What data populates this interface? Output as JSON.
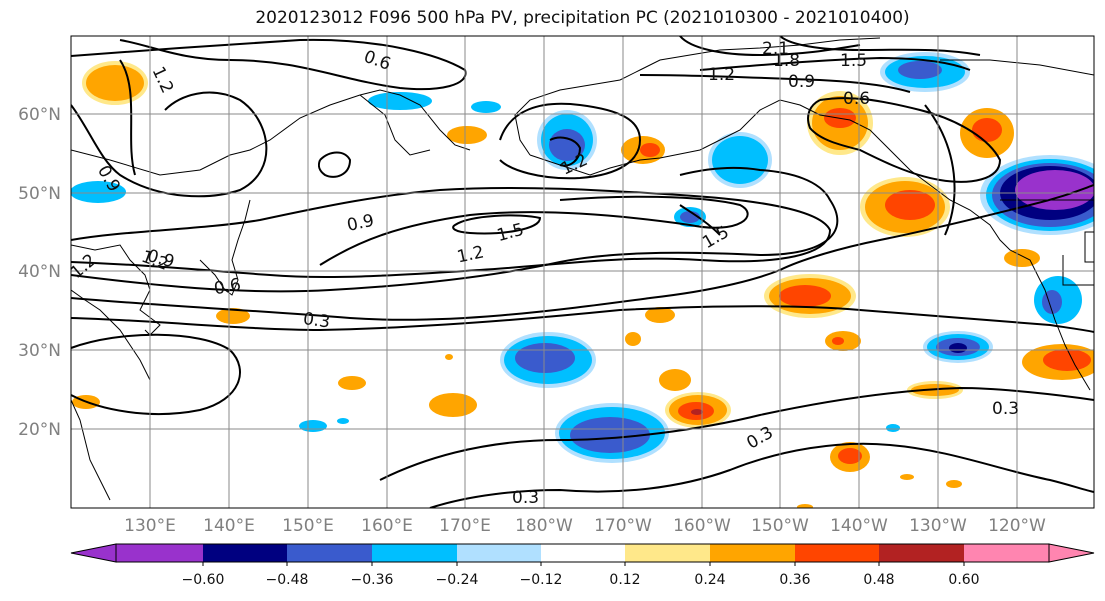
{
  "title": "2020123012 F096 500 hPa PV, precipitation PC (2021010300 - 2021010400)",
  "lat_labels": [
    "60°N",
    "50°N",
    "40°N",
    "30°N",
    "20°N"
  ],
  "lon_labels": [
    "130°E",
    "140°E",
    "150°E",
    "160°E",
    "170°E",
    "180°W",
    "170°W",
    "160°W",
    "150°W",
    "140°W",
    "130°W",
    "120°W"
  ],
  "contour_labels": [
    "0.6",
    "1.2",
    "0.9",
    "2.1",
    "1.8",
    "1.5",
    "1.2",
    "0.9",
    "0.6",
    "0.9",
    "1.2",
    "1.5",
    "1.5",
    "1.2",
    "0.9",
    "1.2",
    "0.6",
    "0.3",
    "0.3",
    "0.3",
    "0.3",
    "1.2"
  ],
  "colorbar": {
    "ticks": [
      "−0.60",
      "−0.48",
      "−0.36",
      "−0.24",
      "−0.12",
      "0.12",
      "0.24",
      "0.36",
      "0.48",
      "0.60"
    ],
    "colors": [
      "#9932cc",
      "#000080",
      "#3a5bcd",
      "#00bfff",
      "#b0e0ff",
      "#ffffff",
      "#ffe88a",
      "#ffa500",
      "#ff4500",
      "#b22222",
      "#ff85b0"
    ]
  }
}
